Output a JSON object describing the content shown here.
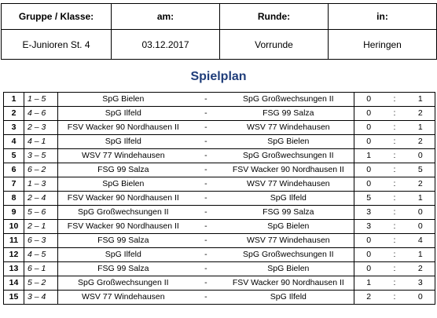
{
  "header": {
    "labels": [
      "Gruppe / Klasse:",
      "am:",
      "Runde:",
      "in:"
    ],
    "values": [
      "E-Junioren St. 4",
      "03.12.2017",
      "Vorrunde",
      "Heringen"
    ]
  },
  "title": "Spielplan",
  "dash": "-",
  "colon": ":",
  "games": [
    {
      "nr": "1",
      "pair": "1 – 5",
      "home": "SpG Bielen",
      "away": "SpG Großwechsungen II",
      "g1": "0",
      "g2": "1"
    },
    {
      "nr": "2",
      "pair": "4 – 6",
      "home": "SpG Ilfeld",
      "away": "FSG 99 Salza",
      "g1": "0",
      "g2": "2"
    },
    {
      "nr": "3",
      "pair": "2 – 3",
      "home": "FSV Wacker 90 Nordhausen II",
      "away": "WSV 77 Windehausen",
      "g1": "0",
      "g2": "1"
    },
    {
      "nr": "4",
      "pair": "4 – 1",
      "home": "SpG Ilfeld",
      "away": "SpG Bielen",
      "g1": "0",
      "g2": "2"
    },
    {
      "nr": "5",
      "pair": "3 – 5",
      "home": "WSV 77 Windehausen",
      "away": "SpG Großwechsungen II",
      "g1": "1",
      "g2": "0"
    },
    {
      "nr": "6",
      "pair": "6 – 2",
      "home": "FSG 99 Salza",
      "away": "FSV Wacker 90 Nordhausen II",
      "g1": "0",
      "g2": "5"
    },
    {
      "nr": "7",
      "pair": "1 – 3",
      "home": "SpG Bielen",
      "away": "WSV 77 Windehausen",
      "g1": "0",
      "g2": "2"
    },
    {
      "nr": "8",
      "pair": "2 – 4",
      "home": "FSV Wacker 90 Nordhausen II",
      "away": "SpG Ilfeld",
      "g1": "5",
      "g2": "1"
    },
    {
      "nr": "9",
      "pair": "5 – 6",
      "home": "SpG Großwechsungen II",
      "away": "FSG 99 Salza",
      "g1": "3",
      "g2": "0"
    },
    {
      "nr": "10",
      "pair": "2 – 1",
      "home": "FSV Wacker 90 Nordhausen II",
      "away": "SpG Bielen",
      "g1": "3",
      "g2": "0"
    },
    {
      "nr": "11",
      "pair": "6 – 3",
      "home": "FSG 99 Salza",
      "away": "WSV 77 Windehausen",
      "g1": "0",
      "g2": "4"
    },
    {
      "nr": "12",
      "pair": "4 – 5",
      "home": "SpG Ilfeld",
      "away": "SpG Großwechsungen II",
      "g1": "0",
      "g2": "1"
    },
    {
      "nr": "13",
      "pair": "6 – 1",
      "home": "FSG 99 Salza",
      "away": "SpG Bielen",
      "g1": "0",
      "g2": "2"
    },
    {
      "nr": "14",
      "pair": "5 – 2",
      "home": "SpG Großwechsungen II",
      "away": "FSV Wacker 90 Nordhausen II",
      "g1": "1",
      "g2": "3"
    },
    {
      "nr": "15",
      "pair": "3 – 4",
      "home": "WSV 77 Windehausen",
      "away": "SpG Ilfeld",
      "g1": "2",
      "g2": "0"
    }
  ]
}
